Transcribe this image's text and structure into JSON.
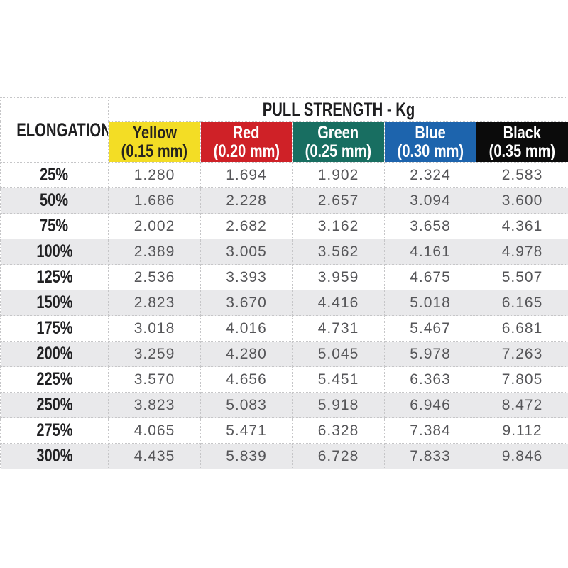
{
  "table": {
    "title": "PULL STRENGTH - Kg",
    "corner_label": "ELONGATION",
    "unit": "Kg",
    "stripe_color": "#e9e9eb",
    "grid_color": "#c6c6c8",
    "columns": [
      {
        "name": "Yellow",
        "size": "(0.15 mm)",
        "bg": "#f3dd25",
        "text": "#26241f"
      },
      {
        "name": "Red",
        "size": "(0.20 mm)",
        "bg": "#cf2127",
        "text": "#ffffff"
      },
      {
        "name": "Green",
        "size": "(0.25 mm)",
        "bg": "#186e61",
        "text": "#ffffff"
      },
      {
        "name": "Blue",
        "size": "(0.30 mm)",
        "bg": "#1d64ad",
        "text": "#ffffff"
      },
      {
        "name": "Black",
        "size": "(0.35 mm)",
        "bg": "#0b0b0b",
        "text": "#ffffff"
      }
    ],
    "rows": [
      {
        "elongation": "25%",
        "values": [
          "1.280",
          "1.694",
          "1.902",
          "2.324",
          "2.583"
        ]
      },
      {
        "elongation": "50%",
        "values": [
          "1.686",
          "2.228",
          "2.657",
          "3.094",
          "3.600"
        ]
      },
      {
        "elongation": "75%",
        "values": [
          "2.002",
          "2.682",
          "3.162",
          "3.658",
          "4.361"
        ]
      },
      {
        "elongation": "100%",
        "values": [
          "2.389",
          "3.005",
          "3.562",
          "4.161",
          "4.978"
        ]
      },
      {
        "elongation": "125%",
        "values": [
          "2.536",
          "3.393",
          "3.959",
          "4.675",
          "5.507"
        ]
      },
      {
        "elongation": "150%",
        "values": [
          "2.823",
          "3.670",
          "4.416",
          "5.018",
          "6.165"
        ]
      },
      {
        "elongation": "175%",
        "values": [
          "3.018",
          "4.016",
          "4.731",
          "5.467",
          "6.681"
        ]
      },
      {
        "elongation": "200%",
        "values": [
          "3.259",
          "4.280",
          "5.045",
          "5.978",
          "7.263"
        ]
      },
      {
        "elongation": "225%",
        "values": [
          "3.570",
          "4.656",
          "5.451",
          "6.363",
          "7.805"
        ]
      },
      {
        "elongation": "250%",
        "values": [
          "3.823",
          "5.083",
          "5.918",
          "6.946",
          "8.472"
        ]
      },
      {
        "elongation": "275%",
        "values": [
          "4.065",
          "5.471",
          "6.328",
          "7.384",
          "9.112"
        ]
      },
      {
        "elongation": "300%",
        "values": [
          "4.435",
          "5.839",
          "6.728",
          "7.833",
          "9.846"
        ]
      }
    ]
  },
  "chart_data": {
    "type": "table",
    "title": "PULL STRENGTH - Kg",
    "row_axis_label": "ELONGATION",
    "unit": "Kg",
    "categories": [
      "25%",
      "50%",
      "75%",
      "100%",
      "125%",
      "150%",
      "175%",
      "200%",
      "225%",
      "250%",
      "275%",
      "300%"
    ],
    "series": [
      {
        "name": "Yellow (0.15 mm)",
        "color": "#f3dd25",
        "values": [
          1.28,
          1.686,
          2.002,
          2.389,
          2.536,
          2.823,
          3.018,
          3.259,
          3.57,
          3.823,
          4.065,
          4.435
        ]
      },
      {
        "name": "Red (0.20 mm)",
        "color": "#cf2127",
        "values": [
          1.694,
          2.228,
          2.682,
          3.005,
          3.393,
          3.67,
          4.016,
          4.28,
          4.656,
          5.083,
          5.471,
          5.839
        ]
      },
      {
        "name": "Green (0.25 mm)",
        "color": "#186e61",
        "values": [
          1.902,
          2.657,
          3.162,
          3.562,
          3.959,
          4.416,
          4.731,
          5.045,
          5.451,
          5.918,
          6.328,
          6.728
        ]
      },
      {
        "name": "Blue (0.30 mm)",
        "color": "#1d64ad",
        "values": [
          2.324,
          3.094,
          3.658,
          4.161,
          4.675,
          5.018,
          5.467,
          5.978,
          6.363,
          6.946,
          7.384,
          7.833
        ]
      },
      {
        "name": "Black (0.35 mm)",
        "color": "#0b0b0b",
        "values": [
          2.583,
          3.6,
          4.361,
          4.978,
          5.507,
          6.165,
          6.681,
          7.263,
          7.805,
          8.472,
          9.112,
          9.846
        ]
      }
    ],
    "layout": {
      "striped_rows": true,
      "grid": "dotted",
      "header_position": "top"
    }
  }
}
